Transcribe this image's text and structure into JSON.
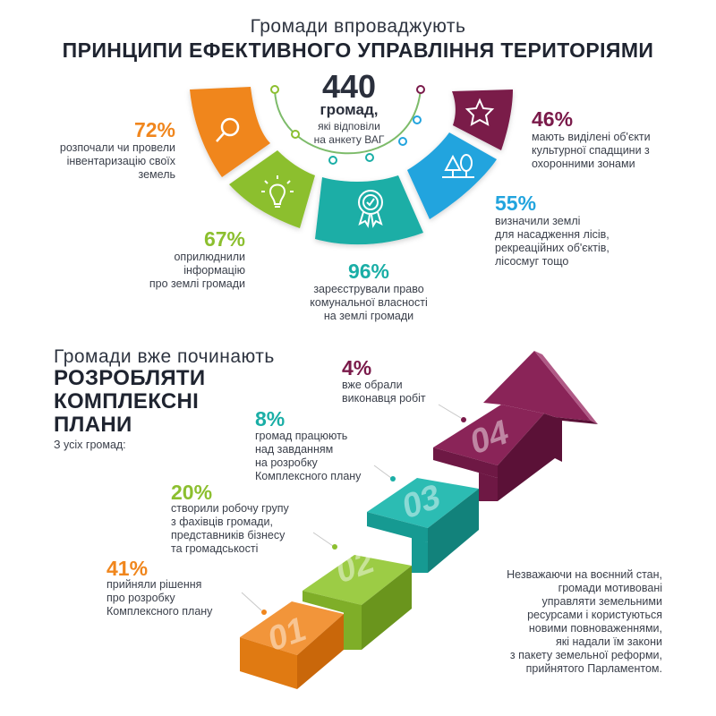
{
  "section1": {
    "subtitle": "Громади впроваджують",
    "title": "ПРИНЦИПИ ЕФЕКТИВНОГО УПРАВЛІННЯ ТЕРИТОРІЯМИ",
    "center_number": "440",
    "center_unit": "громад,",
    "center_desc": "які відповіли\nна анкету ВАГ",
    "stats": [
      {
        "pct": "72%",
        "text": "розпочали чи провели\nінвентаризацію своїх\nземель",
        "color": "#f0861d",
        "icon": "magnifier-icon"
      },
      {
        "pct": "67%",
        "text": "оприлюднили\nінформацію\nпро землі громади",
        "color": "#8cbf2f",
        "icon": "lightbulb-icon"
      },
      {
        "pct": "96%",
        "text": "зареєстрували право\nкомунальної власності\nна землі громади",
        "color": "#1aaea6",
        "icon": "award-badge-icon"
      },
      {
        "pct": "55%",
        "text": "визначили землі\nдля насадження лісів,\nрекреаційних об'єктів,\nлісосмуг тощо",
        "color": "#22a4de",
        "icon": "trees-icon"
      },
      {
        "pct": "46%",
        "text": "мають виділені об'єкти\nкультурної спадщини з\nохоронними зонами",
        "color": "#7a1a4a",
        "icon": "star-icon"
      }
    ]
  },
  "section2": {
    "subtitle": "Громади вже починають",
    "title": "РОЗРОБЛЯТИ\nКОМПЛЕКСНІ\nПЛАНИ",
    "note": "З усіх громад:",
    "steps": [
      {
        "num": "01",
        "pct": "41%",
        "text": "прийняли рішення\nпро розробку\nКомплексного плану",
        "color": "#f0861d"
      },
      {
        "num": "02",
        "pct": "20%",
        "text": "створили робочу групу\nз фахівців громади,\nпредставників бізнесу\nта громадськості",
        "color": "#8cbf2f"
      },
      {
        "num": "03",
        "pct": "8%",
        "text": "громад працюють\nнад завданням\nна розробку\nКомплексного плану",
        "color": "#1aaea6"
      },
      {
        "num": "04",
        "pct": "4%",
        "text": "вже обрали\nвиконавця робіт",
        "color": "#7a1a4a"
      }
    ],
    "footnote": "Незважаючи на воєнний стан,\nгромади мотивовані\nуправляти земельними\nресурсами і користуються\nновими повноваженнями,\nякі надали їм закони\nз пакету земельної реформи,\nприйнятого Парламентом."
  }
}
